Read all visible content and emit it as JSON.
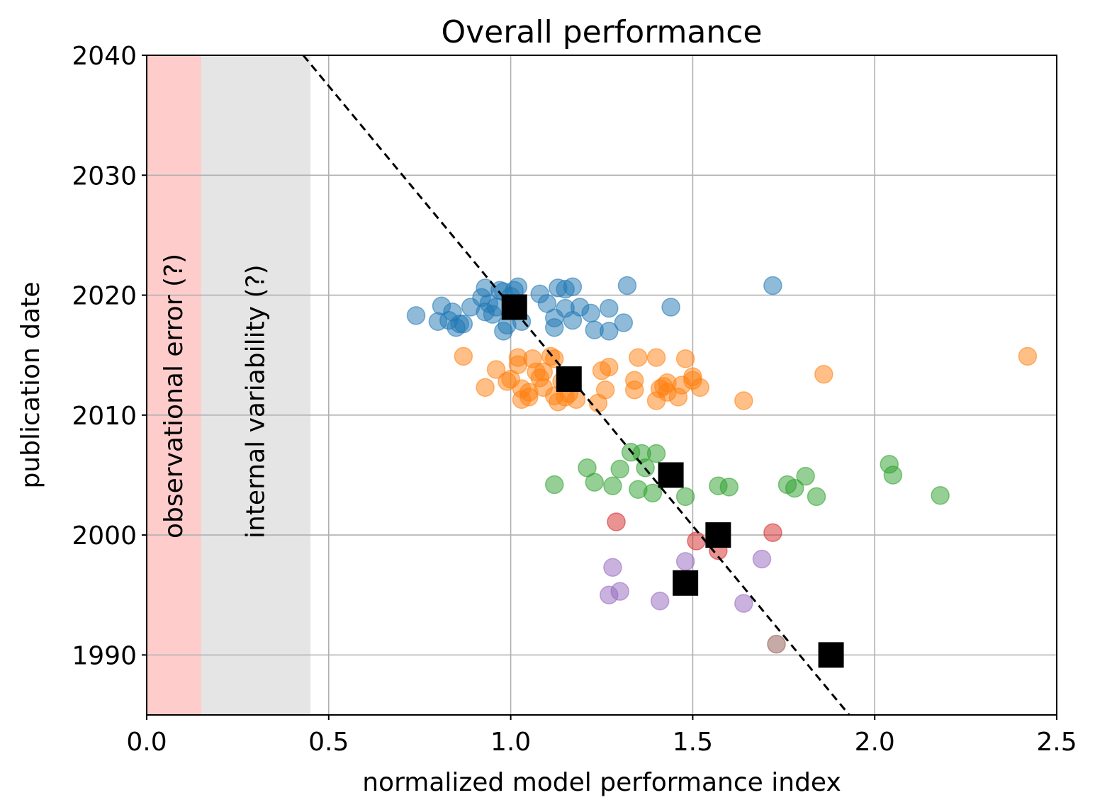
{
  "chart_data": {
    "type": "scatter",
    "title": "Overall performance",
    "xlabel": "normalized model performance index",
    "ylabel": "publication date",
    "xlim": [
      0.0,
      2.5
    ],
    "ylim": [
      1985,
      2040
    ],
    "xticks": [
      "0.0",
      "0.5",
      "1.0",
      "1.5",
      "2.0",
      "2.5"
    ],
    "yticks": [
      "1990",
      "2000",
      "2010",
      "2020",
      "2030",
      "2040"
    ],
    "grid": true,
    "bands": [
      {
        "label": "observational error (?)",
        "x0": 0.0,
        "x1": 0.15,
        "color": "#ffcccc"
      },
      {
        "label": "internal variability (?)",
        "x0": 0.15,
        "x1": 0.45,
        "color": "#e5e5e5"
      }
    ],
    "trend_line": {
      "x": [
        0.43,
        1.93
      ],
      "y": [
        2040,
        1985
      ],
      "color": "#000000"
    },
    "series": [
      {
        "color": "#1f77b4",
        "points": [
          [
            0.74,
            2018.3
          ],
          [
            0.8,
            2017.8
          ],
          [
            0.81,
            2019.1
          ],
          [
            0.83,
            2017.9
          ],
          [
            0.84,
            2018.6
          ],
          [
            0.85,
            2017.3
          ],
          [
            0.86,
            2017.6
          ],
          [
            0.87,
            2017.6
          ],
          [
            0.89,
            2019.0
          ],
          [
            0.92,
            2019.8
          ],
          [
            0.93,
            2020.6
          ],
          [
            0.93,
            2018.6
          ],
          [
            0.94,
            2019.3
          ],
          [
            0.95,
            2018.4
          ],
          [
            0.96,
            2019.0
          ],
          [
            0.97,
            2020.4
          ],
          [
            0.98,
            2020.3
          ],
          [
            0.98,
            2017.0
          ],
          [
            0.99,
            2017.5
          ],
          [
            1.0,
            2019.9
          ],
          [
            1.01,
            2020.4
          ],
          [
            1.02,
            2020.7
          ],
          [
            1.03,
            2017.8
          ],
          [
            1.08,
            2020.1
          ],
          [
            1.1,
            2019.3
          ],
          [
            1.12,
            2018.1
          ],
          [
            1.12,
            2017.3
          ],
          [
            1.13,
            2020.6
          ],
          [
            1.15,
            2020.5
          ],
          [
            1.15,
            2018.9
          ],
          [
            1.17,
            2020.7
          ],
          [
            1.17,
            2017.9
          ],
          [
            1.19,
            2019.0
          ],
          [
            1.22,
            2018.5
          ],
          [
            1.23,
            2017.1
          ],
          [
            1.27,
            2017.0
          ],
          [
            1.27,
            2018.9
          ],
          [
            1.31,
            2017.7
          ],
          [
            1.32,
            2020.8
          ],
          [
            1.44,
            2019.0
          ],
          [
            1.72,
            2020.8
          ]
        ]
      },
      {
        "color": "#ff7f0e",
        "points": [
          [
            0.87,
            2014.9
          ],
          [
            0.93,
            2012.3
          ],
          [
            0.96,
            2013.8
          ],
          [
            0.99,
            2012.8
          ],
          [
            1.0,
            2013.0
          ],
          [
            1.02,
            2014.8
          ],
          [
            1.02,
            2014.2
          ],
          [
            1.03,
            2012.2
          ],
          [
            1.03,
            2011.3
          ],
          [
            1.05,
            2011.5
          ],
          [
            1.05,
            2011.9
          ],
          [
            1.06,
            2014.7
          ],
          [
            1.07,
            2013.6
          ],
          [
            1.08,
            2013.1
          ],
          [
            1.09,
            2013.6
          ],
          [
            1.09,
            2012.3
          ],
          [
            1.11,
            2014.9
          ],
          [
            1.12,
            2014.7
          ],
          [
            1.12,
            2011.6
          ],
          [
            1.13,
            2011.1
          ],
          [
            1.14,
            2012.8
          ],
          [
            1.15,
            2011.5
          ],
          [
            1.16,
            2011.8
          ],
          [
            1.18,
            2011.3
          ],
          [
            1.24,
            2011.0
          ],
          [
            1.25,
            2013.7
          ],
          [
            1.26,
            2012.1
          ],
          [
            1.27,
            2014.0
          ],
          [
            1.34,
            2012.1
          ],
          [
            1.34,
            2012.9
          ],
          [
            1.35,
            2014.8
          ],
          [
            1.4,
            2014.8
          ],
          [
            1.4,
            2011.2
          ],
          [
            1.41,
            2012.2
          ],
          [
            1.42,
            2012.4
          ],
          [
            1.43,
            2012.7
          ],
          [
            1.43,
            2011.9
          ],
          [
            1.46,
            2011.5
          ],
          [
            1.47,
            2012.5
          ],
          [
            1.48,
            2014.7
          ],
          [
            1.5,
            2013.2
          ],
          [
            1.5,
            2012.9
          ],
          [
            1.52,
            2012.3
          ],
          [
            1.64,
            2011.2
          ],
          [
            1.86,
            2013.4
          ],
          [
            2.42,
            2014.9
          ]
        ]
      },
      {
        "color": "#2ca02c",
        "points": [
          [
            1.12,
            2004.2
          ],
          [
            1.21,
            2005.6
          ],
          [
            1.23,
            2004.4
          ],
          [
            1.28,
            2004.1
          ],
          [
            1.3,
            2005.5
          ],
          [
            1.33,
            2006.9
          ],
          [
            1.35,
            2003.8
          ],
          [
            1.36,
            2006.8
          ],
          [
            1.37,
            2005.6
          ],
          [
            1.39,
            2003.5
          ],
          [
            1.4,
            2006.8
          ],
          [
            1.48,
            2003.2
          ],
          [
            1.57,
            2004.1
          ],
          [
            1.6,
            2004.0
          ],
          [
            1.76,
            2004.2
          ],
          [
            1.78,
            2003.9
          ],
          [
            1.81,
            2004.9
          ],
          [
            1.84,
            2003.2
          ],
          [
            2.04,
            2005.9
          ],
          [
            2.05,
            2005.0
          ],
          [
            2.18,
            2003.3
          ]
        ]
      },
      {
        "color": "#d62728",
        "points": [
          [
            1.29,
            2001.1
          ],
          [
            1.51,
            1999.5
          ],
          [
            1.57,
            1998.7
          ],
          [
            1.72,
            2000.2
          ]
        ]
      },
      {
        "color": "#9467bd",
        "points": [
          [
            1.27,
            1995.0
          ],
          [
            1.28,
            1997.3
          ],
          [
            1.3,
            1995.3
          ],
          [
            1.41,
            1994.5
          ],
          [
            1.48,
            1997.8
          ],
          [
            1.64,
            1994.3
          ],
          [
            1.69,
            1998.0
          ]
        ]
      },
      {
        "color": "#8c564b",
        "points": [
          [
            1.73,
            1990.9
          ]
        ]
      }
    ],
    "means": {
      "color": "#000000",
      "marker": "square",
      "points": [
        [
          1.01,
          2019.0
        ],
        [
          1.16,
          2013.0
        ],
        [
          1.44,
          2005.0
        ],
        [
          1.57,
          2000.0
        ],
        [
          1.48,
          1996.0
        ],
        [
          1.88,
          1990.0
        ]
      ]
    }
  }
}
